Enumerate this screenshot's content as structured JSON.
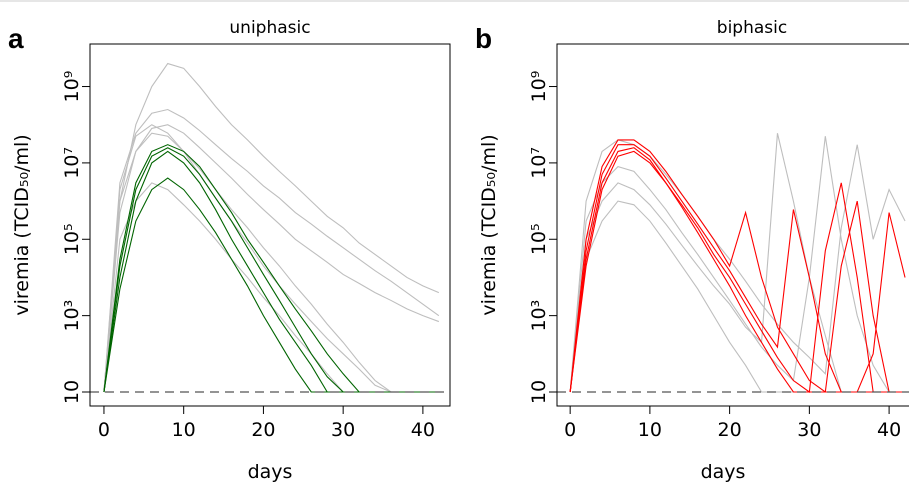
{
  "chart_data": [
    {
      "type": "line",
      "panel_label": "a",
      "title": "uniphasic",
      "xlabel": "days",
      "ylabel": "viremia (TCID₅₀/ml)",
      "log_y": true,
      "hline": 10,
      "xlim": [
        -1.75,
        43.4
      ],
      "xticks": [
        0,
        10,
        20,
        30,
        40
      ],
      "ylim": [
        4.3,
        13000000000
      ],
      "yticks": [
        10,
        {
          "value": 1000,
          "label": "10³"
        },
        {
          "value": 100000,
          "label": "10⁵"
        },
        {
          "value": 10000000,
          "label": "10⁷"
        },
        {
          "value": 1000000000,
          "label": "10⁹"
        }
      ],
      "x": [
        0,
        2,
        4,
        6,
        8,
        10,
        12,
        14,
        16,
        18,
        20,
        22,
        24,
        26,
        28,
        30,
        32,
        34,
        36,
        38,
        40,
        42
      ],
      "series": [
        {
          "color": "#bebebe",
          "values": [
            10,
            1000000.0,
            100000000.0,
            1000000000.0,
            4000000000.0,
            3000000000.0,
            1000000000.0,
            300000000.0,
            100000000.0,
            40000000.0,
            15000000.0,
            6000000.0,
            2500000.0,
            1000000.0,
            400000.0,
            200000.0,
            80000.0,
            40000.0,
            20000.0,
            10000.0,
            6000.0,
            4000.0
          ]
        },
        {
          "color": "#bebebe",
          "values": [
            10,
            500000.0,
            20000000.0,
            80000000.0,
            100000000.0,
            60000000.0,
            25000000.0,
            10000000.0,
            4000000.0,
            1500000.0,
            600000.0,
            250000.0,
            100000.0,
            50000.0,
            25000.0,
            12000.0,
            7000.0,
            4000.0,
            2500.0,
            1500.0,
            1000.0,
            700
          ]
        },
        {
          "color": "#bebebe",
          "values": [
            10,
            2000000.0,
            50000000.0,
            100000000.0,
            60000000.0,
            20000000.0,
            5000000.0,
            1200000.0,
            300000.0,
            80000.0,
            20000.0,
            6000.0,
            2000.0,
            700,
            250,
            100,
            40,
            15,
            10,
            10,
            10,
            10
          ]
        },
        {
          "color": "#bebebe",
          "values": [
            10,
            100000.0,
            1000000.0,
            3000000.0,
            2000000.0,
            800000.0,
            300000.0,
            100000.0,
            30000.0,
            10000.0,
            3000.0,
            1000.0,
            300,
            100,
            30,
            10,
            10,
            10,
            10,
            10,
            10,
            10
          ]
        },
        {
          "color": "#bebebe",
          "values": [
            10,
            3000000.0,
            60000000.0,
            200000000.0,
            250000000.0,
            150000000.0,
            70000000.0,
            30000000.0,
            13000000.0,
            6000000.0,
            2500000.0,
            1200000.0,
            500000.0,
            250000.0,
            120000.0,
            60000.0,
            30000.0,
            15000.0,
            8000.0,
            4000.0,
            2000.0,
            1000.0
          ]
        },
        {
          "color": "#bebebe",
          "values": [
            10,
            1000000.0,
            20000000.0,
            60000000.0,
            50000000.0,
            20000000.0,
            7000000.0,
            2000000.0,
            600000.0,
            200000.0,
            60000.0,
            20000.0,
            6000.0,
            2000.0,
            600,
            200,
            60,
            20,
            10,
            10,
            10,
            10
          ]
        },
        {
          "color": "#006400",
          "values": [
            10,
            10000.0,
            1000000.0,
            10000000.0,
            20000000.0,
            10000000.0,
            3000000.0,
            600000.0,
            100000.0,
            20000.0,
            4000.0,
            800,
            200,
            50,
            10,
            10,
            10,
            10,
            10,
            10,
            10,
            10
          ]
        },
        {
          "color": "#006400",
          "values": [
            10,
            30000.0,
            3000000.0,
            20000000.0,
            30000000.0,
            20000000.0,
            8000000.0,
            2000000.0,
            500000.0,
            100000.0,
            25000.0,
            6000.0,
            1500.0,
            400,
            100,
            30,
            10,
            10,
            10,
            10,
            10,
            10
          ]
        },
        {
          "color": "#006400",
          "values": [
            10,
            5000.0,
            300000.0,
            2000000.0,
            4000000.0,
            2000000.0,
            600000.0,
            150000.0,
            30000.0,
            6000.0,
            1000.0,
            200,
            40,
            10,
            10,
            10,
            10,
            10,
            10,
            10,
            10,
            10
          ]
        },
        {
          "color": "#006400",
          "values": [
            10,
            20000.0,
            2000000.0,
            15000000.0,
            25000000.0,
            15000000.0,
            5000000.0,
            1200000.0,
            300000.0,
            60000.0,
            12000.0,
            2500.0,
            500,
            100,
            25,
            10,
            10,
            10,
            10,
            10,
            10,
            10
          ]
        }
      ]
    },
    {
      "type": "line",
      "panel_label": "b",
      "title": "biphasic",
      "xlabel": "days",
      "ylabel": "viremia (TCID₅₀/ml)",
      "log_y": true,
      "hline": 10,
      "xlim": [
        -1.65,
        43.5
      ],
      "xticks": [
        0,
        10,
        20,
        30,
        40
      ],
      "ylim": [
        4.3,
        13000000000
      ],
      "yticks": [
        10,
        {
          "value": 1000,
          "label": "10³"
        },
        {
          "value": 100000,
          "label": "10⁵"
        },
        {
          "value": 10000000,
          "label": "10⁷"
        },
        {
          "value": 1000000000,
          "label": "10⁹"
        }
      ],
      "x": [
        0,
        2,
        4,
        6,
        8,
        10,
        12,
        14,
        16,
        18,
        20,
        22,
        24,
        26,
        28,
        30,
        32,
        34,
        36,
        38,
        40,
        42
      ],
      "series": [
        {
          "color": "#bebebe",
          "values": [
            10,
            100000.0,
            1000000.0,
            3000000.0,
            2000000.0,
            800000.0,
            250000.0,
            70000.0,
            20000.0,
            6000.0,
            2000.0,
            500,
            200,
            60000000.0,
            1000000.0,
            10000.0,
            300,
            10,
            10,
            10,
            10,
            10
          ]
        },
        {
          "color": "#bebebe",
          "values": [
            10,
            300000.0,
            3000000.0,
            8000000.0,
            6000000.0,
            2000000.0,
            600000.0,
            150000.0,
            40000.0,
            10000.0,
            2500.0,
            600,
            150,
            50,
            20,
            10000.0,
            50000000.0,
            100000.0,
            1000.0,
            50,
            10,
            10
          ]
        },
        {
          "color": "#bebebe",
          "values": [
            10,
            1000000.0,
            20000000.0,
            40000000.0,
            30000000.0,
            15000000.0,
            5000000.0,
            1500000.0,
            400000.0,
            100000.0,
            30000.0,
            8000.0,
            2000.0,
            600,
            200,
            80,
            30,
            200000.0,
            30000000.0,
            100000.0,
            2000000.0,
            300000.0
          ]
        },
        {
          "color": "#bebebe",
          "values": [
            10,
            30000.0,
            300000.0,
            1000000.0,
            800000.0,
            300000.0,
            80000.0,
            20000.0,
            5000.0,
            1000.0,
            200,
            50,
            10,
            10,
            10,
            10,
            10,
            10,
            10,
            10,
            10,
            10
          ]
        },
        {
          "color": "#ff0000",
          "values": [
            10,
            50000.0,
            5000000.0,
            30000000.0,
            30000000.0,
            15000000.0,
            4000000.0,
            1000000.0,
            250000.0,
            60000.0,
            15000.0,
            3000.0,
            600,
            150,
            600000.0,
            10000.0,
            100,
            10,
            10,
            10,
            10,
            10
          ]
        },
        {
          "color": "#ff0000",
          "values": [
            10,
            30000.0,
            3000000.0,
            20000000.0,
            25000000.0,
            12000000.0,
            3000000.0,
            800000.0,
            200000.0,
            40000.0,
            10000.0,
            2000.0,
            400,
            80,
            20,
            10,
            50000.0,
            3000000.0,
            10000.0,
            10,
            10,
            10
          ]
        },
        {
          "color": "#ff0000",
          "values": [
            10,
            100000.0,
            8000000.0,
            40000000.0,
            40000000.0,
            20000000.0,
            6000000.0,
            1500000.0,
            400000.0,
            100000.0,
            20000.0,
            500000.0,
            10000.0,
            500,
            100,
            20,
            10,
            10,
            10,
            100,
            500000.0,
            10000.0
          ]
        },
        {
          "color": "#ff0000",
          "values": [
            10,
            20000.0,
            2000000.0,
            15000000.0,
            20000000.0,
            10000000.0,
            3000000.0,
            700000.0,
            150000.0,
            30000.0,
            6000.0,
            1000.0,
            200,
            40,
            10,
            10,
            10,
            20000.0,
            1000000.0,
            1000.0,
            10,
            10
          ]
        }
      ]
    }
  ]
}
